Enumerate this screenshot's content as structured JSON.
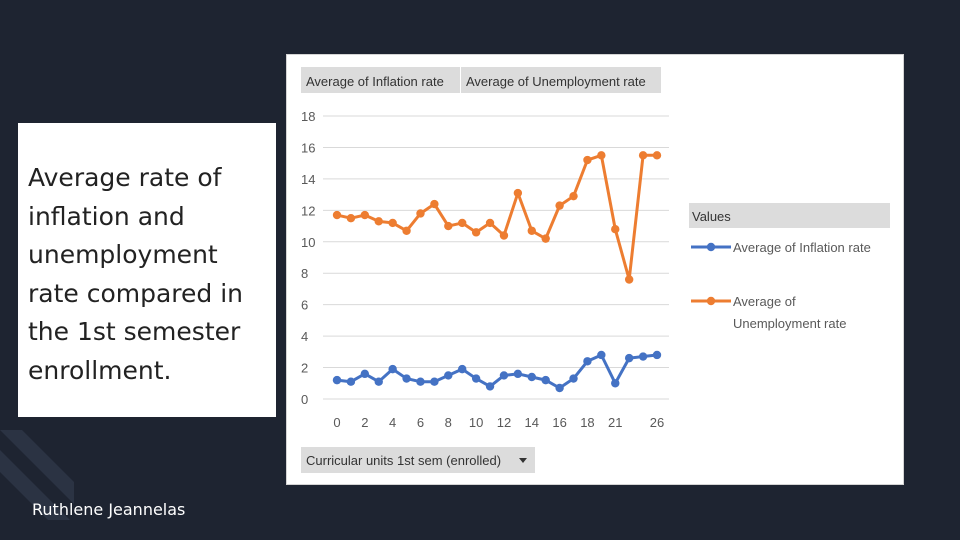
{
  "slide": {
    "title": "Average rate of inflation and unemployment rate compared in the 1st semester enrollment.",
    "author": "Ruthlene Jeannelas"
  },
  "chart_data": {
    "type": "line",
    "field_buttons": [
      "Average of Inflation rate",
      "Average of Unemployment rate"
    ],
    "axis_field_button": "Curricular units 1st sem (enrolled)",
    "x": [
      0,
      1,
      2,
      3,
      4,
      5,
      6,
      7,
      8,
      9,
      10,
      11,
      12,
      13,
      14,
      15,
      16,
      17,
      18,
      19,
      20,
      21,
      22,
      23
    ],
    "xtick_labels": [
      "0",
      "2",
      "4",
      "6",
      "8",
      "10",
      "12",
      "14",
      "16",
      "18",
      "21",
      "26"
    ],
    "ylim": [
      0,
      18
    ],
    "yticks": [
      0,
      2,
      4,
      6,
      8,
      10,
      12,
      14,
      16,
      18
    ],
    "grid": true,
    "legend_title": "Values",
    "legend_position": "right",
    "series": [
      {
        "name": "Average of Inflation rate",
        "color": "#4472c4",
        "values": [
          1.2,
          1.1,
          1.6,
          1.1,
          1.9,
          1.3,
          1.1,
          1.1,
          1.5,
          1.9,
          1.3,
          0.8,
          1.5,
          1.6,
          1.4,
          1.2,
          0.7,
          1.3,
          2.4,
          2.8,
          1.0,
          2.6,
          2.7,
          2.8
        ]
      },
      {
        "name": "Average of Unemployment rate",
        "color": "#ed7d31",
        "values": [
          11.7,
          11.5,
          11.7,
          11.3,
          11.2,
          10.7,
          11.8,
          12.4,
          11.0,
          11.2,
          10.6,
          11.2,
          10.4,
          13.1,
          10.7,
          10.2,
          12.3,
          12.9,
          15.2,
          15.5,
          10.8,
          7.6,
          15.5,
          15.5
        ]
      }
    ]
  }
}
